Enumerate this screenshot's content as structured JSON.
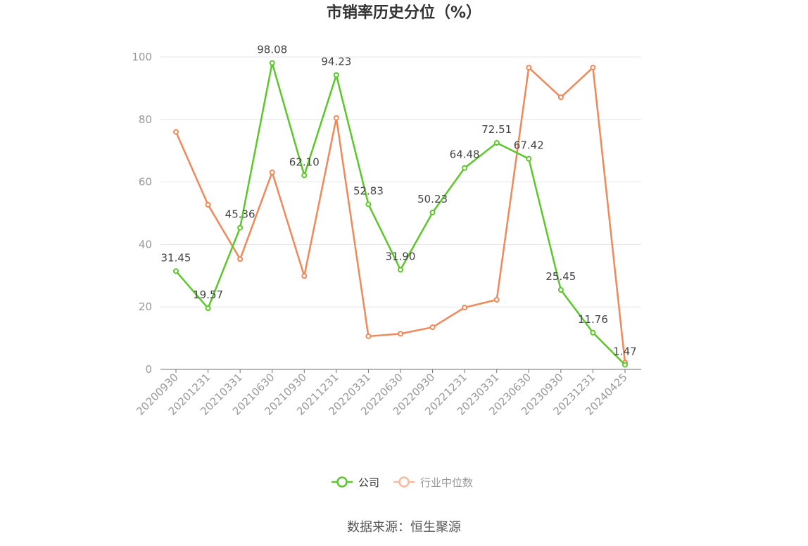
{
  "chart_data": {
    "type": "line",
    "title": "市销率历史分位（%）",
    "source": "数据来源：恒生聚源",
    "categories": [
      "20200930",
      "20201231",
      "20210331",
      "20210630",
      "20210930",
      "20211231",
      "20220331",
      "20220630",
      "20220930",
      "20221231",
      "20230331",
      "20230630",
      "20230930",
      "20231231",
      "20240425"
    ],
    "ylim": [
      0,
      100
    ],
    "yticks": [
      0,
      20,
      40,
      60,
      80,
      100
    ],
    "grid": true,
    "legend_position": "bottom",
    "series": [
      {
        "name": "公司",
        "color": "#5cc72a",
        "values": [
          31.45,
          19.57,
          45.36,
          98.08,
          62.1,
          94.23,
          52.83,
          31.9,
          50.23,
          64.48,
          72.51,
          67.42,
          25.45,
          11.76,
          1.47
        ],
        "labels": [
          "31.45",
          "19.57",
          "45.36",
          "98.08",
          "62.10",
          "94.23",
          "52.83",
          "31.90",
          "50.23",
          "64.48",
          "72.51",
          "67.42",
          "25.45",
          "11.76",
          "1.47"
        ]
      },
      {
        "name": "行业中位数",
        "color": "#f0895a",
        "legend_color": "#f7b9a0",
        "values": [
          76.0,
          52.7,
          35.3,
          63.1,
          29.9,
          80.5,
          10.6,
          11.4,
          13.5,
          19.8,
          22.3,
          96.6,
          87.1,
          96.6,
          2.2
        ]
      }
    ]
  }
}
